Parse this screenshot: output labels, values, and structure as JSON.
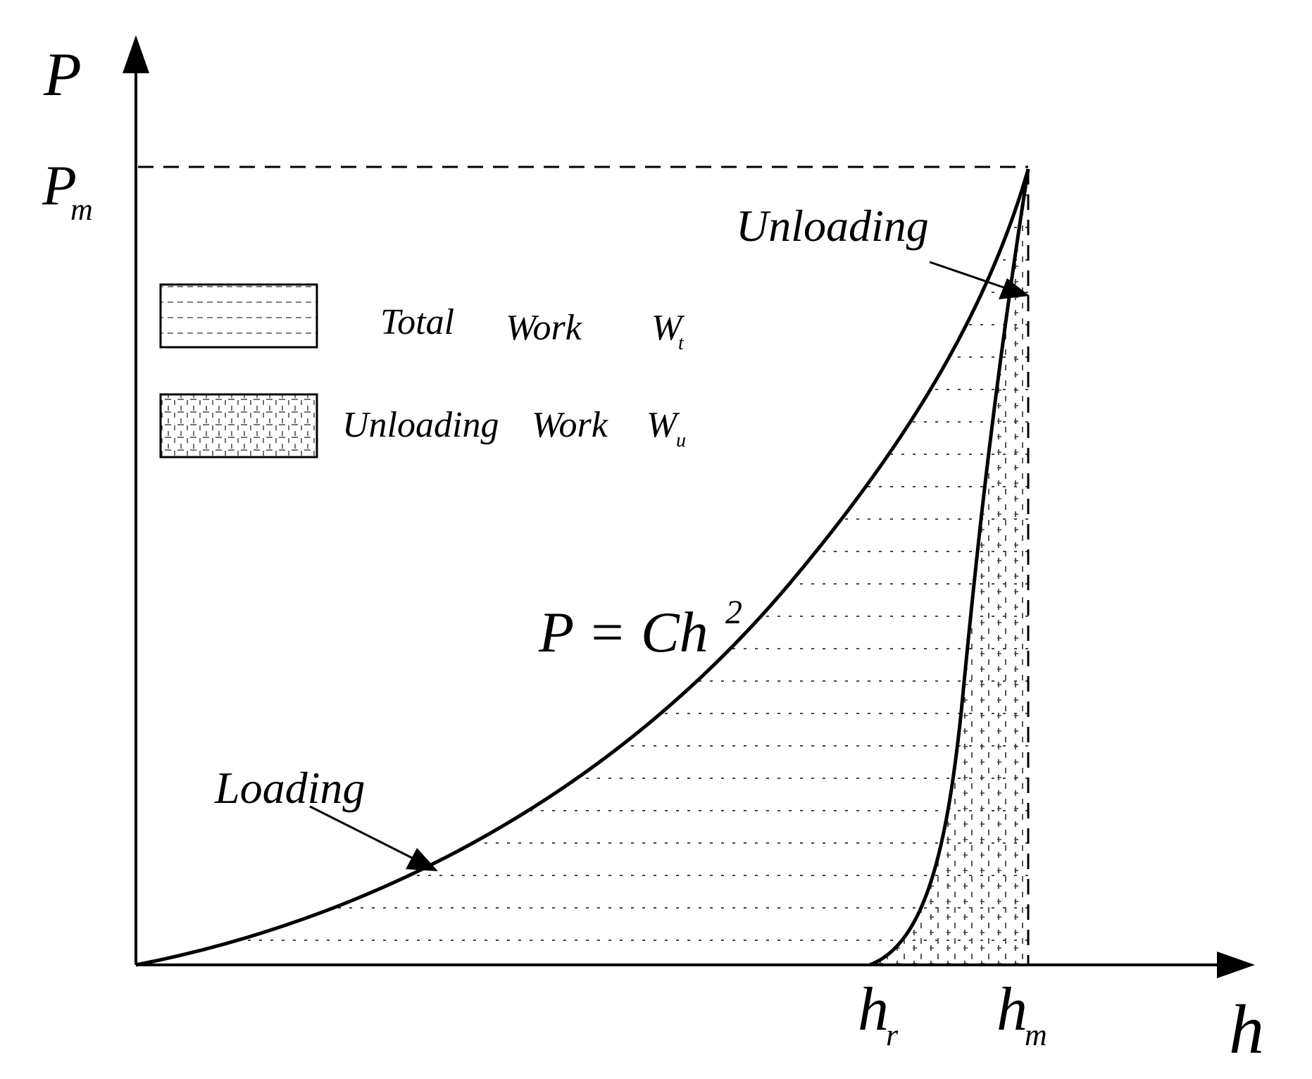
{
  "axes": {
    "y_label": "P",
    "x_label": "h",
    "y_max_label": {
      "main": "P",
      "sub": "m"
    },
    "x_tick_hr": {
      "main": "h",
      "sub": "r"
    },
    "x_tick_hm": {
      "main": "h",
      "sub": "m"
    }
  },
  "legend": [
    {
      "words": [
        "Total",
        "Work"
      ],
      "symbol": {
        "main": "W",
        "sub": "t"
      },
      "pattern": "horizontal-dashes"
    },
    {
      "words": [
        "Unloading",
        "Work"
      ],
      "symbol": {
        "main": "W",
        "sub": "u"
      },
      "pattern": "grid-dashes"
    }
  ],
  "annotations": {
    "unloading": "Unloading",
    "loading": "Loading",
    "equation": {
      "lhs": "P = Ch",
      "exponent": "2"
    }
  },
  "colors": {
    "ink": "#000000",
    "background": "#ffffff"
  }
}
